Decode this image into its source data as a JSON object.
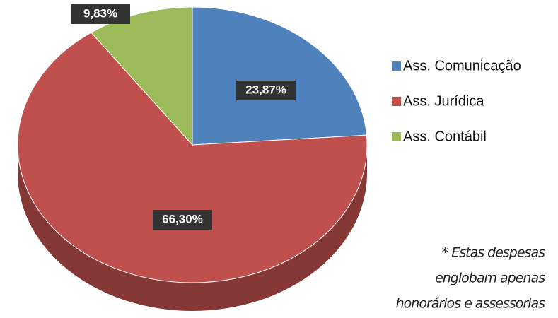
{
  "chart_data": {
    "type": "pie",
    "categories": [
      "Ass. Comunicação",
      "Ass. Jurídica",
      "Ass. Contábil"
    ],
    "values": [
      23.87,
      66.3,
      9.83
    ],
    "value_labels": [
      "23,87%",
      "66,30%",
      "9,83%"
    ],
    "colors": [
      "#4f81bd",
      "#c0504d",
      "#9bbb59"
    ],
    "legend": "right",
    "note": [
      "* Estas despesas",
      "englobam apenas",
      "honorários e assessorias"
    ]
  }
}
